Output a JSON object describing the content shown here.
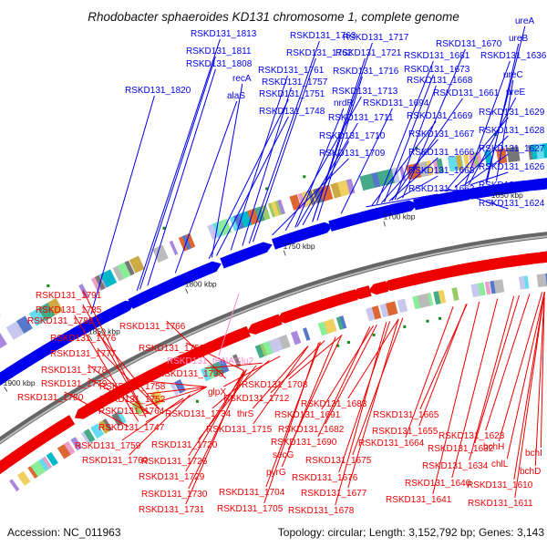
{
  "title": "Rhodobacter sphaeroides KD131 chromosome 1, complete genome",
  "footer": {
    "accession": "Accession: NC_011963",
    "summary": "Topology: circular; Length: 3,152,792 bp; Genes: 3,143"
  },
  "colors": {
    "forward": "#0000ee",
    "reverse": "#ee0000",
    "trna": "#ff88cc",
    "backbone": "#888888",
    "rna_marker": "#118811"
  },
  "ticks": [
    "1900 kbp",
    "1850 kbp",
    "1800 kbp",
    "1750 kbp",
    "1700 kbp",
    "1650 kbp"
  ],
  "forward_labels": [
    "RSKD131_1813",
    "RSKD131_1811",
    "RSKD131_1808",
    "RSKD131_1820",
    "recA",
    "alaS",
    "RSKD131_1763",
    "RSKD131_1762",
    "RSKD131_1761",
    "RSKD131_1757",
    "RSKD131_1751",
    "RSKD131_1748",
    "RSKD131_1717",
    "RSKD131_1721",
    "RSKD131_1716",
    "RSKD131_1713",
    "nrdR",
    "RSKD131_1711",
    "RSKD131_1694",
    "RSKD131_1710",
    "RSKD131_1709",
    "RSKD131_1670",
    "RSKD131_1681",
    "RSKD131_1673",
    "RSKD131_1668",
    "RSKD131_1661",
    "RSKD131_1669",
    "RSKD131_1667",
    "RSKD131_1666",
    "RSKD131_1663",
    "RSKD131_1662",
    "ureA",
    "ureB",
    "RSKD131_1636",
    "ureC",
    "ureE",
    "RSKD131_1629",
    "RSKD131_1628",
    "RSKD131_1627",
    "RSKD131_1626",
    "RSKD131_1625",
    "RSKD131_1624"
  ],
  "trna_label": "RSKD131_tRNAGlu2",
  "reverse_labels": [
    "RSKD131_1791",
    "RSKD131_1785",
    "RSKD131_1788",
    "RSKD131_1776",
    "RSKD131_1777",
    "RSKD131_1778",
    "RSKD131_1779",
    "RSKD131_1780",
    "RSKD131_1766",
    "RSKD131_1753",
    "RSKD131_1733",
    "RSKD131_1758",
    "RSKD131_1752",
    "RSKD131_1764",
    "RSKD131_1747",
    "RSKD131_1759",
    "RSKD131_1760",
    "glpX",
    "RSKD131_1734",
    "RSKD131_1720",
    "RSKD131_1726",
    "RSKD131_1729",
    "RSKD131_1730",
    "RSKD131_1731",
    "RSKD131_1708",
    "RSKD131_1712",
    "thrS",
    "RSKD131_1715",
    "RSKD131_1704",
    "RSKD131_1705",
    "RSKD131_1683",
    "RSKD131_1691",
    "RSKD131_1682",
    "RSKD131_1690",
    "secG",
    "pyrG",
    "RSKD131_1675",
    "RSKD131_1676",
    "RSKD131_1677",
    "RSKD131_1678",
    "RSKD131_1665",
    "RSKD131_1664",
    "RSKD131_1655",
    "RSKD131_1623",
    "RSKD131_1632",
    "bchH",
    "RSKD131_1634",
    "chlL",
    "RSKD131_1640",
    "RSKD131_1641",
    "RSKD131_1610",
    "RSKD131_1611",
    "bchI",
    "bchD"
  ]
}
